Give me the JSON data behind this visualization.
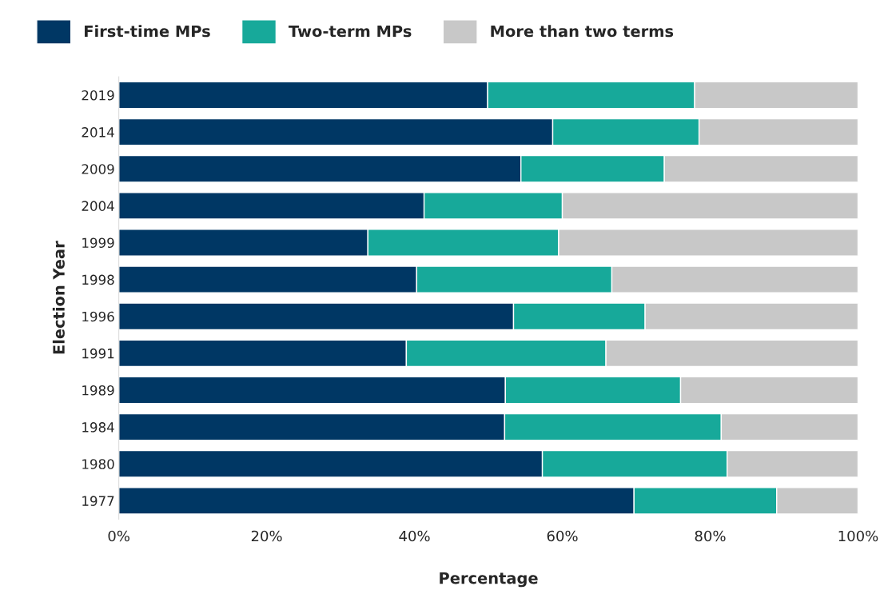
{
  "chart_data": {
    "type": "bar",
    "orientation": "horizontal",
    "stacked": true,
    "xlabel": "Percentage",
    "ylabel": "Election Year",
    "categories": [
      "2019",
      "2014",
      "2009",
      "2004",
      "1999",
      "1998",
      "1996",
      "1991",
      "1989",
      "1984",
      "1980",
      "1977"
    ],
    "series": [
      {
        "name": "First-time MPs",
        "color": "#003764",
        "values": [
          49.9,
          58.7,
          54.4,
          41.3,
          33.7,
          40.3,
          53.4,
          38.9,
          52.3,
          52.2,
          57.3,
          69.7
        ]
      },
      {
        "name": "Two-term MPs",
        "color": "#17a99a",
        "values": [
          28.0,
          19.8,
          19.4,
          18.7,
          25.8,
          26.4,
          17.8,
          27.0,
          23.7,
          29.3,
          25.0,
          19.3
        ]
      },
      {
        "name": "More than two terms",
        "color": "#c8c8c8",
        "values": [
          22.1,
          21.5,
          26.2,
          40.0,
          40.5,
          33.3,
          28.8,
          34.1,
          24.0,
          18.5,
          17.7,
          11.0
        ]
      }
    ],
    "xlim": [
      0,
      100
    ],
    "xticks": [
      {
        "value": 0,
        "label": "0%"
      },
      {
        "value": 20,
        "label": "20%"
      },
      {
        "value": 40,
        "label": "40%"
      },
      {
        "value": 60,
        "label": "60%"
      },
      {
        "value": 80,
        "label": "80%"
      },
      {
        "value": 100,
        "label": "100%"
      }
    ],
    "grid": false,
    "legend": "top left"
  }
}
